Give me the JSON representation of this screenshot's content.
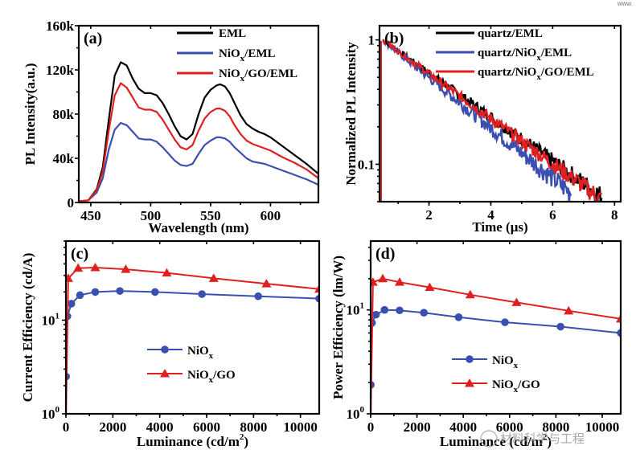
{
  "header_fragment": "www.",
  "watermark": "材料科学与工程",
  "chart_data": [
    {
      "panel": "(a)",
      "type": "line",
      "xlabel": "Wavelength (nm)",
      "ylabel": "PL Intensity(a.u.)",
      "xlim": [
        440,
        640
      ],
      "ylim": [
        0,
        160000
      ],
      "xticks": [
        450,
        500,
        550,
        600
      ],
      "yticks": [
        0,
        40000,
        80000,
        120000,
        160000
      ],
      "ytick_labels": [
        "0",
        "40k",
        "80k",
        "120k",
        "160k"
      ],
      "legend_position": "top-right",
      "x": [
        440,
        448,
        455,
        460,
        465,
        470,
        475,
        480,
        485,
        490,
        495,
        500,
        505,
        510,
        515,
        520,
        525,
        530,
        535,
        540,
        545,
        550,
        555,
        558,
        562,
        566,
        570,
        575,
        580,
        585,
        590,
        595,
        600,
        610,
        620,
        630,
        640
      ],
      "series": [
        {
          "name": "EML",
          "color": "#000000",
          "values": [
            1000,
            2000,
            12000,
            32000,
            75000,
            115000,
            127000,
            124000,
            112000,
            103000,
            99000,
            99000,
            97000,
            90000,
            80000,
            69000,
            60000,
            57000,
            62000,
            80000,
            95000,
            102000,
            106000,
            107000,
            105000,
            99000,
            90000,
            79000,
            71000,
            67000,
            64000,
            62000,
            59000,
            51000,
            43000,
            35000,
            26000
          ]
        },
        {
          "name": "NiOx/EML",
          "label_main": "NiO",
          "label_sub": "x",
          "label_rest": "/EML",
          "color": "#3a4fb0",
          "values": [
            1000,
            2000,
            9000,
            22000,
            48000,
            66000,
            72000,
            70000,
            64000,
            58000,
            57000,
            57000,
            55000,
            50000,
            44000,
            38000,
            34000,
            33000,
            35000,
            44000,
            52000,
            56000,
            59000,
            59000,
            58000,
            55000,
            50000,
            45000,
            40000,
            37000,
            36000,
            35000,
            33000,
            29000,
            25000,
            21000,
            16000
          ]
        },
        {
          "name": "NiOx/GO/EML",
          "label_main": "NiO",
          "label_sub": "x",
          "label_rest": "/GO/EML",
          "color": "#e02020",
          "values": [
            1000,
            2000,
            11000,
            28000,
            65000,
            97000,
            108000,
            104000,
            95000,
            86000,
            84000,
            84000,
            82000,
            75000,
            66000,
            57000,
            50000,
            48000,
            52000,
            65000,
            76000,
            82000,
            85000,
            85000,
            83000,
            78000,
            70000,
            62000,
            56000,
            53000,
            51000,
            49000,
            47000,
            41000,
            36000,
            30000,
            22000
          ]
        }
      ]
    },
    {
      "panel": "(b)",
      "type": "line",
      "xlabel": "Time (μs)",
      "ylabel": "Normalized PL Intensity",
      "xscale": "linear",
      "yscale": "log",
      "xlim": [
        0.4,
        8.2
      ],
      "ylim": [
        0.05,
        1.3
      ],
      "xticks": [
        2,
        4,
        6,
        8
      ],
      "yticks": [
        0.1,
        1
      ],
      "ytick_labels": [
        "0.1",
        "1"
      ],
      "legend_position": "top-right",
      "series": [
        {
          "name": "quartz/EML",
          "color": "#000000",
          "t_start": 0.5,
          "t_end": 7.6,
          "decay_tau_us": 2.45
        },
        {
          "name": "quartz/NiOx/EML",
          "label_main": "quartz/NiO",
          "label_sub": "x",
          "label_rest": "/EML",
          "color": "#3a4fb0",
          "t_start": 0.5,
          "t_end": 6.6,
          "decay_tau_us": 2.15
        },
        {
          "name": "quartz/NiOx/GO/EML",
          "label_main": "quartz/NiO",
          "label_sub": "x",
          "label_rest": "/GO/EML",
          "color": "#e02020",
          "t_start": 0.5,
          "t_end": 7.6,
          "decay_tau_us": 2.4
        }
      ]
    },
    {
      "panel": "(c)",
      "type": "line",
      "xlabel": "Luminance (cd/m²)",
      "ylabel": "Current Efficiency (cd/A)",
      "yscale": "log",
      "xlim": [
        0,
        10800
      ],
      "ylim": [
        1,
        70
      ],
      "xticks": [
        0,
        2000,
        4000,
        6000,
        8000,
        10000
      ],
      "yticks": [
        1,
        10
      ],
      "ytick_labels": [
        "10⁰",
        "10¹"
      ],
      "legend_position": "center",
      "series": [
        {
          "name": "NiOx",
          "label_main": "NiO",
          "label_sub": "x",
          "label_rest": "",
          "color": "#3a4fb0",
          "marker": "circle",
          "x": [
            5,
            60,
            230,
            600,
            1250,
            2300,
            3800,
            5800,
            8200,
            10800
          ],
          "y": [
            2.5,
            11,
            15,
            18.5,
            20,
            20.5,
            20,
            19,
            18,
            17
          ]
        },
        {
          "name": "NiOx/GO",
          "label_main": "NiO",
          "label_sub": "x",
          "label_rest": "/GO",
          "color": "#e02020",
          "marker": "triangle",
          "x": [
            5,
            100,
            520,
            1250,
            2550,
            4300,
            6300,
            8550,
            10800
          ],
          "y": [
            1,
            28,
            36,
            36.5,
            35,
            32,
            28,
            24.5,
            21.5
          ]
        }
      ]
    },
    {
      "panel": "(d)",
      "type": "line",
      "xlabel": "Luminance (cd/m²)",
      "ylabel": "Power Efficiency (lm/W)",
      "yscale": "log",
      "xlim": [
        0,
        10800
      ],
      "ylim": [
        1,
        46
      ],
      "xticks": [
        0,
        2000,
        4000,
        6000,
        8000,
        10000
      ],
      "yticks": [
        1,
        10
      ],
      "ytick_labels": [
        "10⁰",
        "10¹"
      ],
      "legend_position": "center",
      "series": [
        {
          "name": "NiOx",
          "label_main": "NiO",
          "label_sub": "x",
          "label_rest": "",
          "color": "#3a4fb0",
          "marker": "circle",
          "x": [
            5,
            60,
            230,
            600,
            1250,
            2300,
            3800,
            5800,
            8200,
            10800
          ],
          "y": [
            1.9,
            7.5,
            9,
            10,
            9.9,
            9.4,
            8.5,
            7.6,
            6.9,
            6
          ]
        },
        {
          "name": "NiOx/GO",
          "label_main": "NiO",
          "label_sub": "x",
          "label_rest": "/GO",
          "color": "#e02020",
          "marker": "triangle",
          "x": [
            5,
            100,
            520,
            1250,
            2550,
            4300,
            6300,
            8550,
            10800
          ],
          "y": [
            1,
            18.5,
            20,
            18.5,
            16.5,
            14,
            11.8,
            9.8,
            8.2
          ]
        }
      ]
    }
  ]
}
